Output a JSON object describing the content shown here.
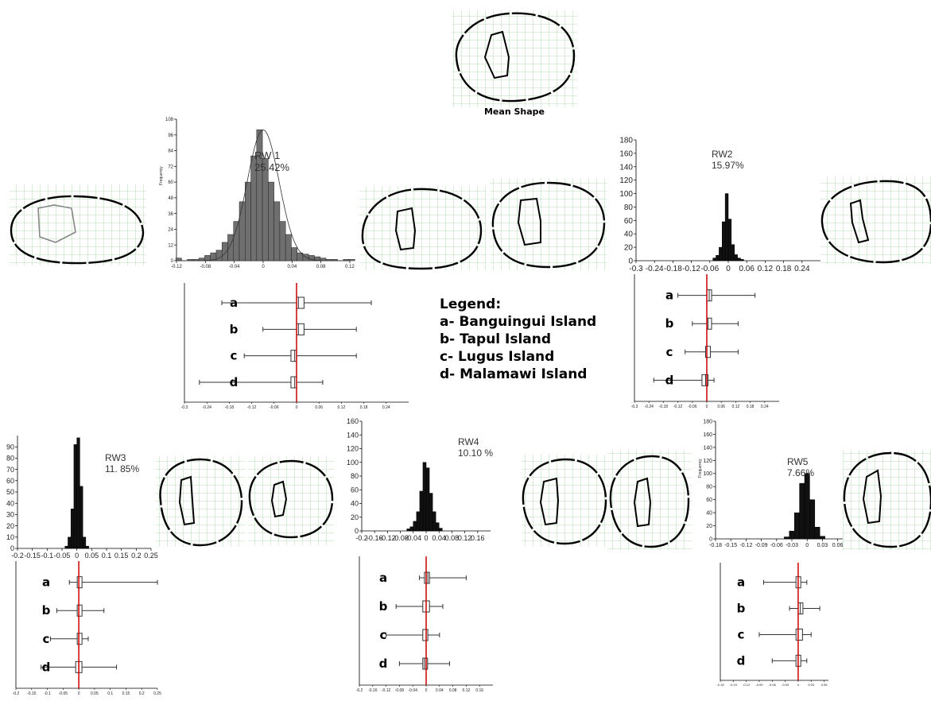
{
  "mean_shape_label": "Mean Shape",
  "legend": {
    "title": "Legend:",
    "items": [
      "a- Banguingui Island",
      "b- Tapul Island",
      "c- Lugus Island",
      "d- Malamawi Island"
    ]
  },
  "colors": {
    "bar_gray": "#6f6f6f",
    "bar_black": "#111111",
    "median_line": "#cc0000",
    "grid": "#9fd59f",
    "outline": "#000000"
  },
  "chart_data": [
    {
      "type": "histogram",
      "title": "RW 1",
      "subtitle": "25.42%",
      "ylabel": "Frequency",
      "xticks": [
        "-0.12",
        "-0.08",
        "-0.04",
        "0",
        "0.04",
        "0.08",
        "0.12"
      ],
      "yticks": [
        "0",
        "12",
        "24",
        "36",
        "48",
        "60",
        "72",
        "84",
        "96",
        "108"
      ],
      "xlim": [
        -0.12,
        0.12
      ],
      "ylim": [
        0,
        108
      ],
      "bar_color": "gray",
      "bins": [
        -0.121,
        -0.105,
        -0.097,
        -0.089,
        -0.081,
        -0.073,
        -0.065,
        -0.057,
        -0.049,
        -0.041,
        -0.033,
        -0.025,
        -0.017,
        -0.009,
        -0.001,
        0.007,
        0.015,
        0.023,
        0.031,
        0.039,
        0.047,
        0.055,
        0.063,
        0.071,
        0.079,
        0.087,
        0.095,
        0.111,
        0.119
      ],
      "counts": [
        2,
        1,
        1,
        2,
        4,
        6,
        8,
        14,
        20,
        30,
        45,
        60,
        80,
        100,
        78,
        60,
        45,
        30,
        20,
        10,
        6,
        5,
        4,
        3,
        2,
        1,
        1,
        1,
        1
      ],
      "boxplot": {
        "xticks": [
          "-0.3",
          "-0.24",
          "-0.18",
          "-0.12",
          "-0.06",
          "0",
          "0.06",
          "0.12",
          "0.18",
          "0.24"
        ],
        "xlim": [
          -0.3,
          0.3
        ],
        "groups": [
          {
            "label": "a",
            "min": -0.2,
            "q1": 0.0,
            "median": 0.005,
            "q3": 0.02,
            "max": 0.2
          },
          {
            "label": "b",
            "min": -0.09,
            "q1": 0.0,
            "median": 0.005,
            "q3": 0.02,
            "max": 0.16
          },
          {
            "label": "c",
            "min": -0.14,
            "q1": -0.015,
            "median": -0.005,
            "q3": 0.0,
            "max": 0.16
          },
          {
            "label": "d",
            "min": -0.26,
            "q1": -0.015,
            "median": -0.005,
            "q3": 0.0,
            "max": 0.07
          }
        ]
      }
    },
    {
      "type": "histogram",
      "title": "RW2",
      "subtitle": "15.97%",
      "ylabel": "",
      "xticks": [
        "-0.3",
        "-0.24",
        "-0.18",
        "-0.12",
        "-0.06",
        "0",
        "0.06",
        "0.12",
        "0.18",
        "0.24"
      ],
      "yticks": [
        "0",
        "20",
        "40",
        "60",
        "80",
        "100",
        "120",
        "140",
        "160",
        "180"
      ],
      "xlim": [
        -0.3,
        0.3
      ],
      "ylim": [
        0,
        180
      ],
      "bar_color": "black",
      "bins": [
        -0.05,
        -0.04,
        -0.03,
        -0.02,
        -0.01,
        0.0,
        0.01,
        0.02,
        0.03,
        0.04
      ],
      "counts": [
        4,
        8,
        20,
        58,
        100,
        62,
        24,
        9,
        4,
        2
      ],
      "boxplot": {
        "xticks": [
          "-0.3",
          "-0.24",
          "-0.18",
          "-0.12",
          "-0.06",
          "0",
          "0.06",
          "0.12",
          "0.18",
          "0.24"
        ],
        "xlim": [
          -0.3,
          0.3
        ],
        "groups": [
          {
            "label": "a",
            "min": -0.12,
            "q1": 0.0,
            "median": 0.01,
            "q3": 0.02,
            "max": 0.2
          },
          {
            "label": "b",
            "min": -0.06,
            "q1": 0.0,
            "median": 0.005,
            "q3": 0.01,
            "max": 0.13
          },
          {
            "label": "c",
            "min": -0.09,
            "q1": -0.005,
            "median": 0.0,
            "q3": 0.005,
            "max": 0.13
          },
          {
            "label": "d",
            "min": -0.22,
            "q1": -0.02,
            "median": -0.005,
            "q3": 0.005,
            "max": 0.03
          }
        ]
      }
    },
    {
      "type": "histogram",
      "title": "RW3",
      "subtitle": "11. 85%",
      "ylabel": "",
      "xticks": [
        "-0.2",
        "-0.15",
        "-0.1",
        "-0.05",
        "0",
        "0.05",
        "0.1",
        "0.15",
        "0.2",
        "0.25"
      ],
      "yticks": [
        "0",
        "10",
        "20",
        "30",
        "40",
        "50",
        "60",
        "70",
        "80",
        "90"
      ],
      "xlim": [
        -0.2,
        0.25
      ],
      "ylim": [
        0,
        100
      ],
      "bar_color": "black",
      "bins": [
        -0.04,
        -0.03,
        -0.02,
        -0.01,
        0.0,
        0.01,
        0.02,
        0.03
      ],
      "counts": [
        2,
        10,
        35,
        92,
        98,
        55,
        10,
        2
      ],
      "boxplot": {
        "xticks": [
          "-0.2",
          "-0.15",
          "-0.1",
          "-0.05",
          "0",
          "0.05",
          "0.1",
          "0.15",
          "0.2",
          "0.25"
        ],
        "xlim": [
          -0.2,
          0.25
        ],
        "groups": [
          {
            "label": "a",
            "min": -0.03,
            "q1": -0.005,
            "median": 0.0,
            "q3": 0.01,
            "max": 0.25
          },
          {
            "label": "b",
            "min": -0.07,
            "q1": -0.005,
            "median": 0.0,
            "q3": 0.005,
            "max": 0.08
          },
          {
            "label": "c",
            "min": -0.09,
            "q1": -0.005,
            "median": 0.0,
            "q3": 0.005,
            "max": 0.03
          },
          {
            "label": "d",
            "min": -0.12,
            "q1": -0.01,
            "median": 0.0,
            "q3": 0.01,
            "max": 0.12
          }
        ]
      }
    },
    {
      "type": "histogram",
      "title": "RW4",
      "subtitle": "10.10 %",
      "ylabel": "",
      "xticks": [
        "-0.2",
        "-0.16",
        "-0.12",
        "-0.08",
        "-0.04",
        "0",
        "0.04",
        "0.08",
        "0.12",
        "0.16"
      ],
      "yticks": [
        "0",
        "20",
        "40",
        "60",
        "80",
        "100",
        "120",
        "140",
        "160"
      ],
      "xlim": [
        -0.2,
        0.2
      ],
      "ylim": [
        0,
        160
      ],
      "bar_color": "black",
      "bins": [
        -0.06,
        -0.05,
        -0.04,
        -0.03,
        -0.02,
        -0.01,
        0.0,
        0.01,
        0.02,
        0.03,
        0.04
      ],
      "counts": [
        3,
        6,
        14,
        28,
        58,
        100,
        92,
        55,
        28,
        12,
        4
      ],
      "boxplot": {
        "xticks": [
          "-0.2",
          "-0.16",
          "-0.12",
          "-0.08",
          "-0.04",
          "0",
          "0.04",
          "0.08",
          "0.12",
          "0.16"
        ],
        "xlim": [
          -0.2,
          0.2
        ],
        "groups": [
          {
            "label": "a",
            "min": -0.02,
            "q1": -0.005,
            "median": 0.005,
            "q3": 0.01,
            "max": 0.12
          },
          {
            "label": "b",
            "min": -0.09,
            "q1": -0.01,
            "median": 0.0,
            "q3": 0.01,
            "max": 0.05
          },
          {
            "label": "c",
            "min": -0.12,
            "q1": -0.01,
            "median": 0.0,
            "q3": 0.005,
            "max": 0.04
          },
          {
            "label": "d",
            "min": -0.08,
            "q1": -0.01,
            "median": -0.005,
            "q3": 0.0,
            "max": 0.07
          }
        ]
      }
    },
    {
      "type": "histogram",
      "title": "RW5",
      "subtitle": "7.66%",
      "ylabel": "Frequency",
      "xticks": [
        "-0.18",
        "-0.15",
        "-0.12",
        "-0.09",
        "-0.06",
        "-0.03",
        "0",
        "0.03",
        "0.06"
      ],
      "yticks": [
        "0",
        "20",
        "40",
        "60",
        "80",
        "100",
        "120",
        "140",
        "160",
        "180"
      ],
      "xlim": [
        -0.18,
        0.07
      ],
      "ylim": [
        0,
        180
      ],
      "bar_color": "black",
      "bins": [
        -0.045,
        -0.035,
        -0.025,
        -0.015,
        -0.005,
        0.005,
        0.015,
        0.025
      ],
      "counts": [
        3,
        12,
        40,
        85,
        100,
        60,
        18,
        4
      ],
      "boxplot": {
        "xticks": [
          "-0.18",
          "-0.15",
          "-0.12",
          "-0.09",
          "-0.06",
          "-0.03",
          "0",
          "0.03",
          "0.06"
        ],
        "xlim": [
          -0.18,
          0.07
        ],
        "groups": [
          {
            "label": "a",
            "min": -0.08,
            "q1": -0.005,
            "median": 0.0,
            "q3": 0.005,
            "max": 0.02
          },
          {
            "label": "b",
            "min": -0.02,
            "q1": 0.0,
            "median": 0.005,
            "q3": 0.01,
            "max": 0.05
          },
          {
            "label": "c",
            "min": -0.09,
            "q1": -0.005,
            "median": 0.0,
            "q3": 0.01,
            "max": 0.03
          },
          {
            "label": "d",
            "min": -0.06,
            "q1": -0.005,
            "median": 0.0,
            "q3": 0.005,
            "max": 0.02
          }
        ]
      }
    }
  ]
}
